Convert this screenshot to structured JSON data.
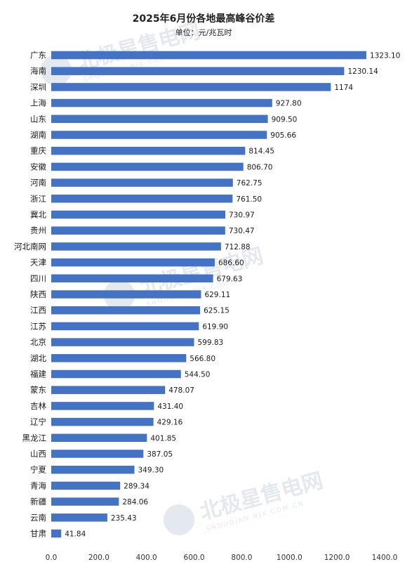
{
  "chart_data": {
    "type": "bar",
    "orientation": "horizontal",
    "title": "2025年6月份各地最高峰谷价差",
    "subtitle": "单位：元/兆瓦时",
    "categories": [
      "广东",
      "海南",
      "深圳",
      "上海",
      "山东",
      "湖南",
      "重庆",
      "安徽",
      "河南",
      "浙江",
      "冀北",
      "贵州",
      "河北南网",
      "天津",
      "四川",
      "陕西",
      "江西",
      "江苏",
      "北京",
      "湖北",
      "福建",
      "蒙东",
      "吉林",
      "辽宁",
      "黑龙江",
      "山西",
      "宁夏",
      "青海",
      "新疆",
      "云南",
      "甘肃"
    ],
    "values": [
      1323.1,
      1230.14,
      1174,
      927.8,
      909.5,
      905.66,
      814.45,
      806.7,
      762.75,
      761.5,
      730.97,
      730.47,
      712.88,
      686.6,
      679.63,
      629.11,
      625.15,
      619.9,
      599.83,
      566.8,
      544.5,
      478.07,
      431.4,
      429.16,
      401.85,
      387.05,
      349.3,
      289.34,
      284.06,
      235.43,
      41.84
    ],
    "value_labels": [
      "1323.10",
      "1230.14",
      "1174",
      "927.80",
      "909.50",
      "905.66",
      "814.45",
      "806.70",
      "762.75",
      "761.50",
      "730.97",
      "730.47",
      "712.88",
      "686.60",
      "679.63",
      "629.11",
      "625.15",
      "619.90",
      "599.83",
      "566.80",
      "544.50",
      "478.07",
      "431.40",
      "429.16",
      "401.85",
      "387.05",
      "349.30",
      "289.34",
      "284.06",
      "235.43",
      "41.84"
    ],
    "xlim": [
      0,
      1400
    ],
    "xticks": [
      "0.0",
      "200.0",
      "400.0",
      "600.0",
      "800.0",
      "1000.0",
      "1200.0",
      "1400.0"
    ],
    "xtick_values": [
      0,
      200,
      400,
      600,
      800,
      1000,
      1200,
      1400
    ],
    "grid": false,
    "legend": "none",
    "bar_color": "#4472c4"
  },
  "watermark": {
    "text": "北极星售电网",
    "subtext": "SHOUDIAN.BJX.COM.CN"
  }
}
